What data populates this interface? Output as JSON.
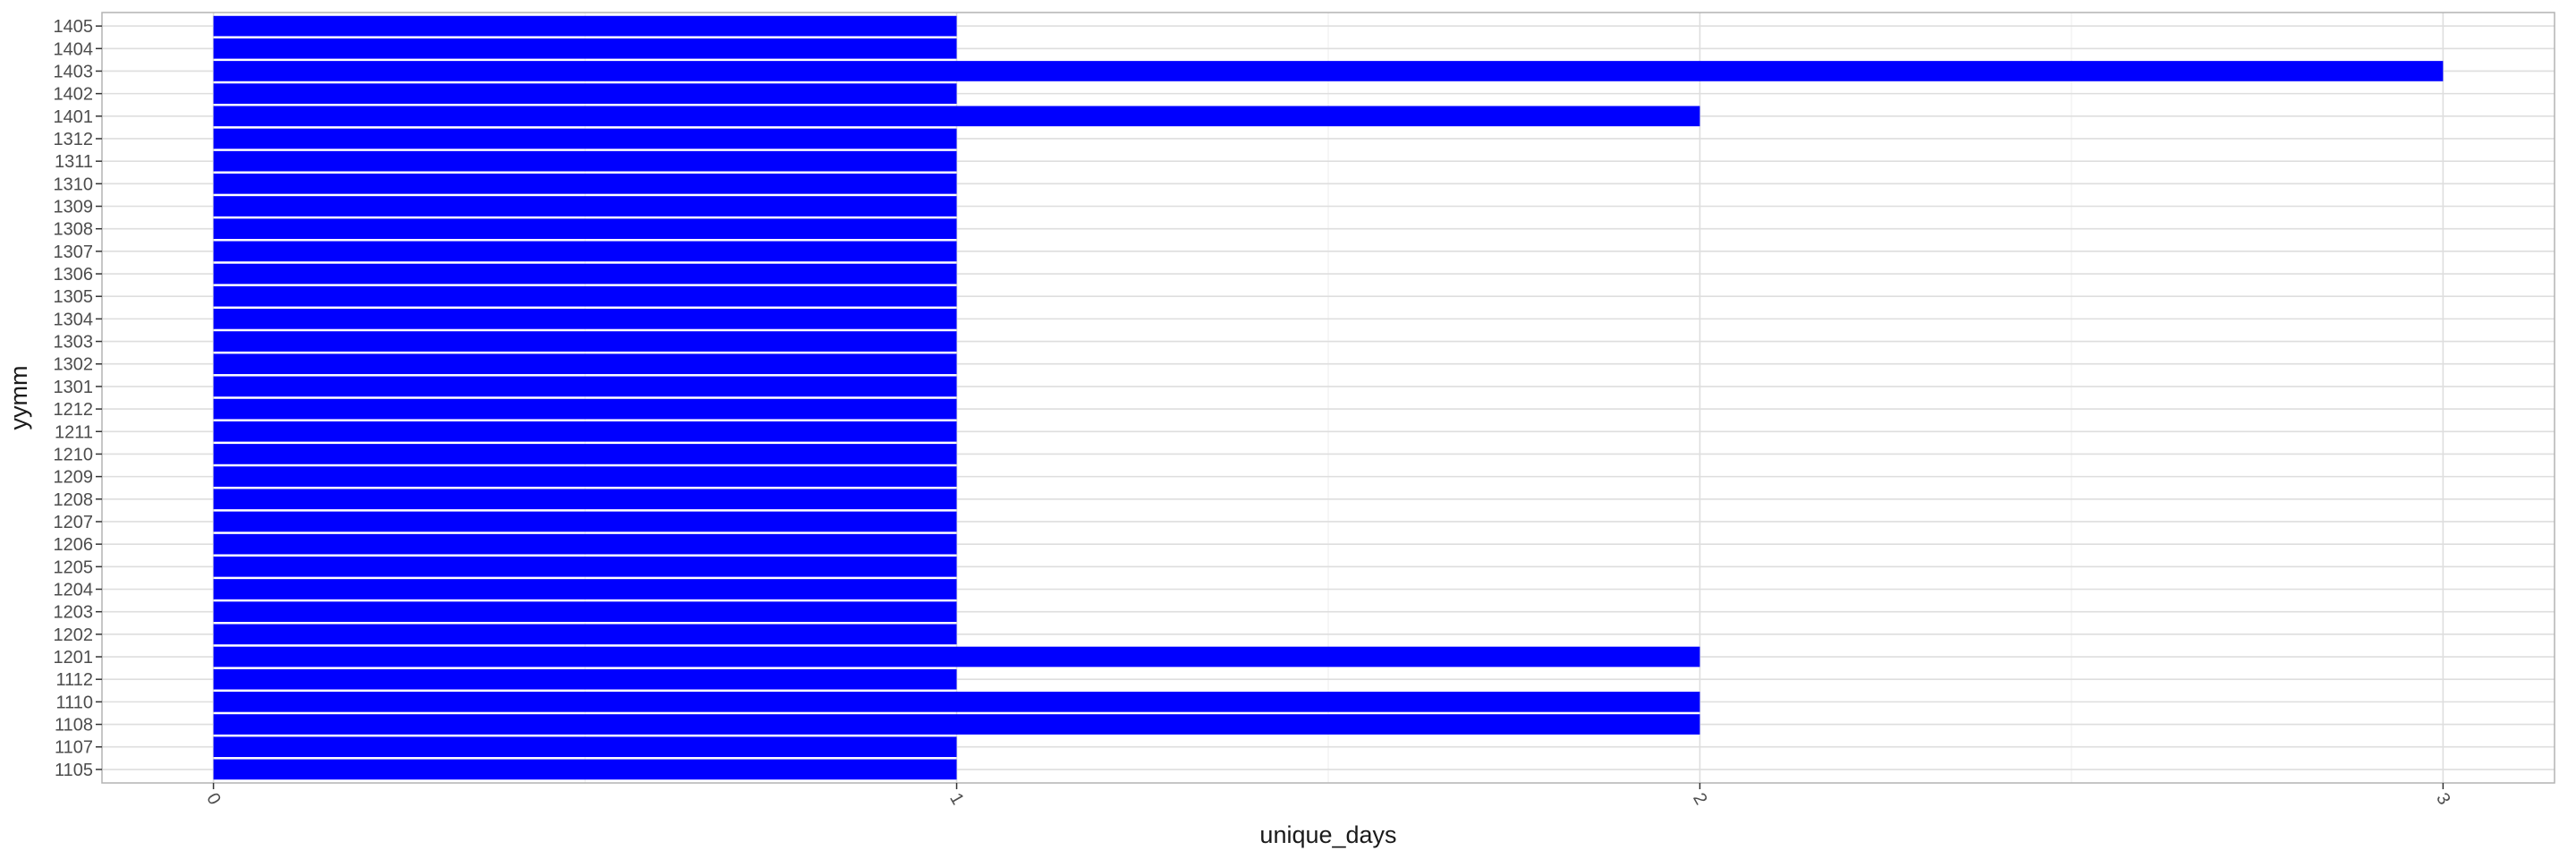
{
  "chart_data": {
    "type": "bar",
    "orientation": "horizontal",
    "xlabel": "unique_days",
    "ylabel": "yymm",
    "xlim": [
      -0.15,
      3.15
    ],
    "x_ticks": [
      0,
      1,
      2,
      3
    ],
    "grid": true,
    "bar_color": "#0000ff",
    "categories": [
      "1105",
      "1107",
      "1108",
      "1110",
      "1112",
      "1201",
      "1202",
      "1203",
      "1204",
      "1205",
      "1206",
      "1207",
      "1208",
      "1209",
      "1210",
      "1211",
      "1212",
      "1301",
      "1302",
      "1303",
      "1304",
      "1305",
      "1306",
      "1307",
      "1308",
      "1309",
      "1310",
      "1311",
      "1312",
      "1401",
      "1402",
      "1403",
      "1404",
      "1405"
    ],
    "values": [
      1,
      1,
      2,
      2,
      1,
      2,
      1,
      1,
      1,
      1,
      1,
      1,
      1,
      1,
      1,
      1,
      1,
      1,
      1,
      1,
      1,
      1,
      1,
      1,
      1,
      1,
      1,
      1,
      1,
      2,
      1,
      3,
      1,
      1
    ]
  }
}
